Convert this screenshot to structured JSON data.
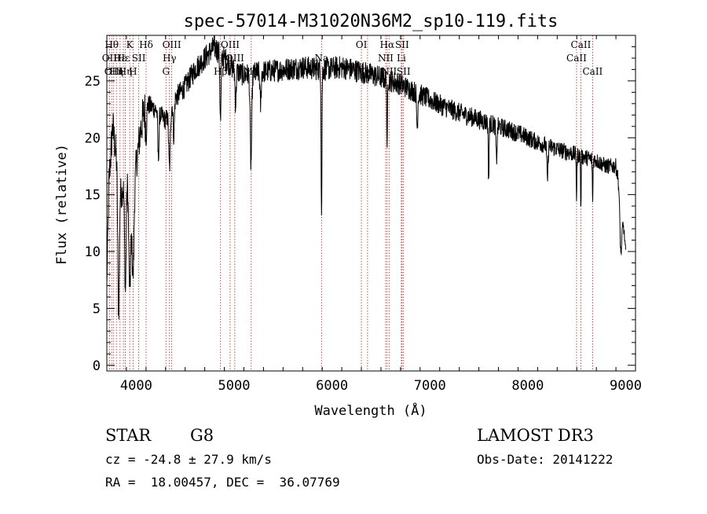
{
  "chart_data": {
    "type": "line",
    "title": "spec-57014-M31020N36M2_sp10-119.fits",
    "xlabel": "Wavelength (Å)",
    "ylabel": "Flux (relative)",
    "xlim": [
      3700,
      9100
    ],
    "ylim": [
      -0.5,
      29
    ],
    "xticks": [
      4000,
      5000,
      6000,
      7000,
      8000,
      9000
    ],
    "yticks": [
      0,
      5,
      10,
      15,
      20,
      25
    ],
    "grid": false,
    "series": [
      {
        "name": "spectrum",
        "continuum_knots": [
          [
            3700,
            7
          ],
          [
            3720,
            16
          ],
          [
            3760,
            21
          ],
          [
            3800,
            18
          ],
          [
            3850,
            15
          ],
          [
            3900,
            17
          ],
          [
            3950,
            15
          ],
          [
            3990,
            17
          ],
          [
            4050,
            21
          ],
          [
            4100,
            23
          ],
          [
            4200,
            22.5
          ],
          [
            4300,
            21.5
          ],
          [
            4400,
            23.5
          ],
          [
            4500,
            24.5
          ],
          [
            4600,
            26
          ],
          [
            4700,
            27
          ],
          [
            4800,
            28
          ],
          [
            4900,
            27
          ],
          [
            5000,
            26
          ],
          [
            5100,
            25.5
          ],
          [
            5300,
            25.8
          ],
          [
            5500,
            26
          ],
          [
            5700,
            26.2
          ],
          [
            5900,
            26
          ],
          [
            6100,
            26.2
          ],
          [
            6300,
            25.8
          ],
          [
            6500,
            25.3
          ],
          [
            6700,
            24.7
          ],
          [
            6900,
            23.8
          ],
          [
            7100,
            22.9
          ],
          [
            7300,
            22.2
          ],
          [
            7500,
            21.6
          ],
          [
            7700,
            21
          ],
          [
            7900,
            20.4
          ],
          [
            8100,
            19.6
          ],
          [
            8300,
            19
          ],
          [
            8500,
            18.5
          ],
          [
            8700,
            18
          ],
          [
            8800,
            17.5
          ],
          [
            8900,
            17.5
          ],
          [
            8950,
            15
          ],
          [
            9000,
            10
          ]
        ],
        "absorption_features": [
          [
            3820,
            12,
            8
          ],
          [
            3890,
            10,
            8
          ],
          [
            3934,
            9,
            10
          ],
          [
            3968,
            8,
            10
          ],
          [
            4101,
            3,
            6
          ],
          [
            4226,
            4,
            6
          ],
          [
            4340,
            5,
            8
          ],
          [
            4384,
            3,
            6
          ],
          [
            4861,
            6,
            6
          ],
          [
            5015,
            3,
            6
          ],
          [
            5172,
            8,
            8
          ],
          [
            5270,
            3,
            6
          ],
          [
            5893,
            13,
            4
          ],
          [
            6563,
            7,
            3
          ],
          [
            6870,
            3,
            6
          ],
          [
            7600,
            5,
            4
          ],
          [
            7680,
            3,
            6
          ],
          [
            8200,
            3,
            6
          ],
          [
            8498,
            4,
            3
          ],
          [
            8542,
            5,
            3
          ],
          [
            8662,
            4,
            3
          ],
          [
            8950,
            5,
            10
          ]
        ],
        "noise_amplitude_relative": 0.04
      }
    ],
    "line_markers": [
      {
        "wavelength": 3727,
        "label": "OII",
        "row": 1
      },
      {
        "wavelength": 3750,
        "label": "Hθ",
        "row": 0
      },
      {
        "wavelength": 3770,
        "label": "OIII",
        "row": 2
      },
      {
        "wavelength": 3798,
        "label": "Hη",
        "row": 2
      },
      {
        "wavelength": 3835,
        "label": "Hε",
        "row": 1
      },
      {
        "wavelength": 3869,
        "label": "Hε",
        "row": 1
      },
      {
        "wavelength": 3889,
        "label": "Hη",
        "row": 2
      },
      {
        "wavelength": 3934,
        "label": "K",
        "row": 0
      },
      {
        "wavelength": 3968,
        "label": "H",
        "row": 2
      },
      {
        "wavelength": 4026,
        "label": "SII",
        "row": 1
      },
      {
        "wavelength": 4101,
        "label": "Hδ",
        "row": 0
      },
      {
        "wavelength": 4304,
        "label": "G",
        "row": 2
      },
      {
        "wavelength": 4340,
        "label": "Hγ",
        "row": 1
      },
      {
        "wavelength": 4363,
        "label": "OIII",
        "row": 0
      },
      {
        "wavelength": 4861,
        "label": "Hβ",
        "row": 2
      },
      {
        "wavelength": 4959,
        "label": "OIII",
        "row": 0
      },
      {
        "wavelength": 5007,
        "label": "OIII",
        "row": 1
      },
      {
        "wavelength": 5175,
        "label": "Mg",
        "row": 2
      },
      {
        "wavelength": 5893,
        "label": "Na",
        "row": 1
      },
      {
        "wavelength": 6300,
        "label": "OI",
        "row": 0
      },
      {
        "wavelength": 6363,
        "label": "OI",
        "row": 2
      },
      {
        "wavelength": 6548,
        "label": "NII",
        "row": 1
      },
      {
        "wavelength": 6563,
        "label": "Hα",
        "row": 0
      },
      {
        "wavelength": 6583,
        "label": "NII",
        "row": 2
      },
      {
        "wavelength": 6708,
        "label": "Li",
        "row": 1
      },
      {
        "wavelength": 6716,
        "label": "SII",
        "row": 0
      },
      {
        "wavelength": 6731,
        "label": "SII",
        "row": 2
      },
      {
        "wavelength": 8498,
        "label": "CaII",
        "row": 1
      },
      {
        "wavelength": 8542,
        "label": "CaII",
        "row": 0
      },
      {
        "wavelength": 8662,
        "label": "CaII",
        "row": 2
      }
    ]
  },
  "info": {
    "object_class": "STAR",
    "subclass": "G8",
    "survey": "LAMOST DR3",
    "cz": "cz = -24.8 ± 27.9 km/s",
    "obs_date": "Obs-Date: 20141222",
    "coords": "RA =  18.00457, DEC =  36.07769"
  },
  "colors": {
    "spectrum": "#000000",
    "marker": "#b22222",
    "axis": "#000000"
  }
}
